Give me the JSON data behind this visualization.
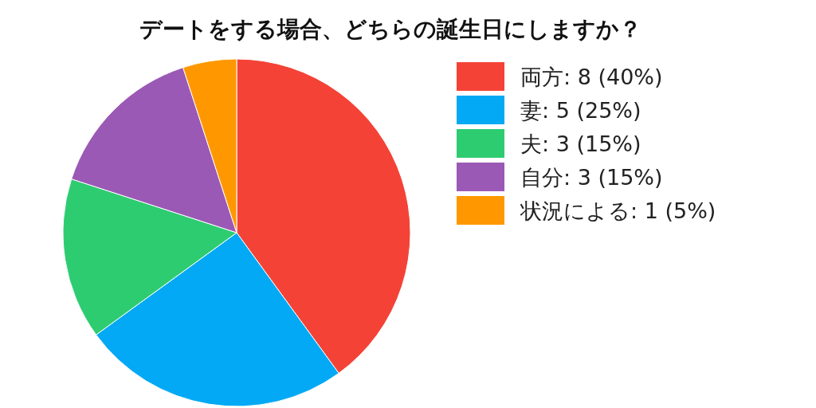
{
  "chart_data": {
    "type": "pie",
    "title": "デートをする場合、どちらの誕生日にしますか？",
    "categories": [
      "両方: 8 (40%)",
      "妻: 5 (25%)",
      "夫: 3 (15%)",
      "自分: 3 (15%)",
      "状況による: 1 (5%)"
    ],
    "values": [
      40,
      25,
      15,
      15,
      5
    ],
    "colors": [
      "#f44336",
      "#03a9f4",
      "#2ecc71",
      "#9b59b6",
      "#ff9800"
    ],
    "legend": "top right"
  }
}
